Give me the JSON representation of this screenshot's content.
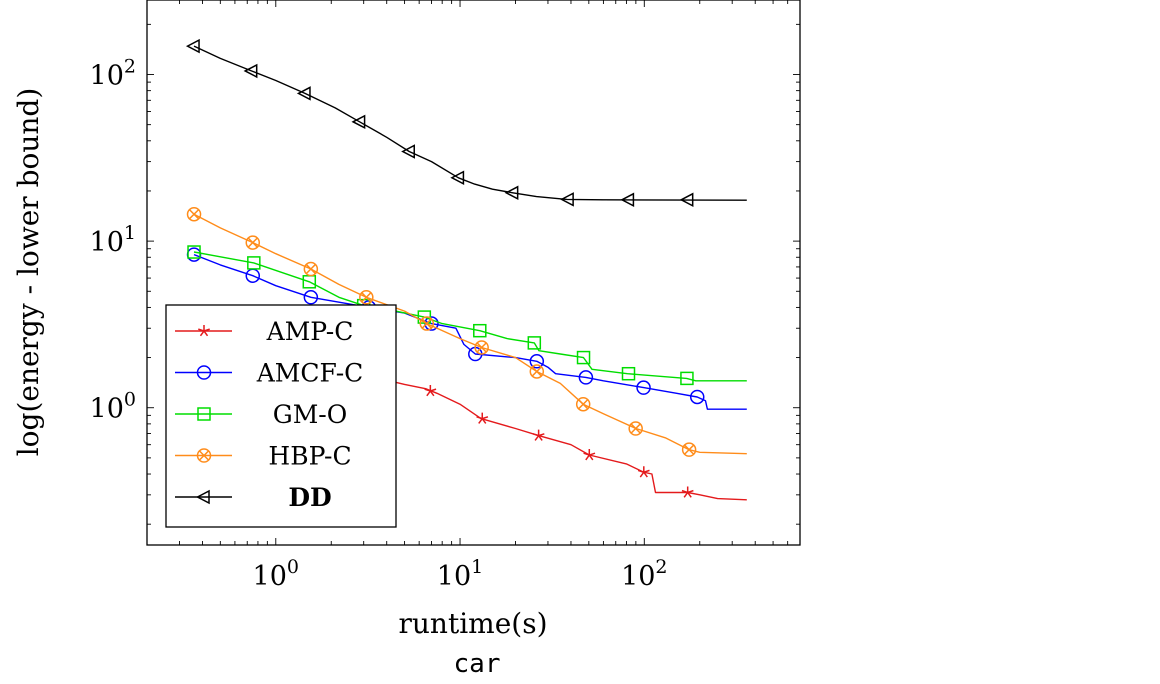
{
  "chart_data": {
    "type": "line",
    "xlabel": "runtime(s)",
    "ylabel": "log(energy - lower bound)",
    "caption": "car",
    "x_scale": "log",
    "y_scale": "log",
    "xlim": [
      0.2,
      700
    ],
    "ylim": [
      0.15,
      280
    ],
    "x_ticks": [
      {
        "value": 1,
        "base": "10",
        "exp": "0"
      },
      {
        "value": 10,
        "base": "10",
        "exp": "1"
      },
      {
        "value": 100,
        "base": "10",
        "exp": "2"
      }
    ],
    "y_ticks": [
      {
        "value": 1,
        "base": "10",
        "exp": "0"
      },
      {
        "value": 10,
        "base": "10",
        "exp": "1"
      },
      {
        "value": 100,
        "base": "10",
        "exp": "2"
      }
    ],
    "grid": false,
    "legend_position": "bottom-left",
    "series": [
      {
        "name": "AMP-C",
        "color": "#e41a1c",
        "marker": "star",
        "bold": false,
        "points": [
          [
            0.36,
            2.6
          ],
          [
            0.6,
            2.2
          ],
          [
            1,
            1.9
          ],
          [
            2,
            1.65
          ],
          [
            3.2,
            1.55
          ],
          [
            5,
            1.38
          ],
          [
            6.5,
            1.3
          ],
          [
            7.5,
            1.22
          ],
          [
            10,
            1.05
          ],
          [
            13,
            0.86
          ],
          [
            20,
            0.75
          ],
          [
            26.7,
            0.68
          ],
          [
            40,
            0.6
          ],
          [
            50.3,
            0.52
          ],
          [
            80,
            0.46
          ],
          [
            99.4,
            0.41
          ],
          [
            110,
            0.4
          ],
          [
            115,
            0.31
          ],
          [
            172,
            0.31
          ],
          [
            200,
            0.3
          ],
          [
            250,
            0.285
          ],
          [
            360,
            0.28
          ]
        ],
        "markers": [
          [
            0.36,
            2.6
          ],
          [
            0.75,
            2.1
          ],
          [
            1.55,
            1.75
          ],
          [
            3.2,
            1.55
          ],
          [
            6.9,
            1.26
          ],
          [
            13.2,
            0.86
          ],
          [
            26.7,
            0.68
          ],
          [
            50.3,
            0.52
          ],
          [
            99.4,
            0.41
          ],
          [
            172,
            0.31
          ]
        ]
      },
      {
        "name": "AMCF-C",
        "color": "#0000ff",
        "marker": "circle",
        "bold": false,
        "points": [
          [
            0.36,
            8.3
          ],
          [
            0.5,
            7.2
          ],
          [
            0.75,
            6.2
          ],
          [
            1,
            5.4
          ],
          [
            1.55,
            4.6
          ],
          [
            2.5,
            4.2
          ],
          [
            3.2,
            4.0
          ],
          [
            5,
            3.7
          ],
          [
            7,
            3.2
          ],
          [
            9.5,
            3.0
          ],
          [
            10.5,
            2.4
          ],
          [
            12.1,
            2.1
          ],
          [
            20,
            2.0
          ],
          [
            26.1,
            1.9
          ],
          [
            30,
            1.75
          ],
          [
            33,
            1.6
          ],
          [
            48.2,
            1.52
          ],
          [
            60,
            1.45
          ],
          [
            99.1,
            1.32
          ],
          [
            150,
            1.22
          ],
          [
            193.8,
            1.16
          ],
          [
            215,
            1.1
          ],
          [
            220,
            0.98
          ],
          [
            360,
            0.98
          ]
        ],
        "markers": [
          [
            0.36,
            8.3
          ],
          [
            0.75,
            6.2
          ],
          [
            1.55,
            4.6
          ],
          [
            3.2,
            4.0
          ],
          [
            7.0,
            3.2
          ],
          [
            12.1,
            2.1
          ],
          [
            26.1,
            1.9
          ],
          [
            48.2,
            1.52
          ],
          [
            99.1,
            1.32
          ],
          [
            193.8,
            1.16
          ]
        ]
      },
      {
        "name": "GM-O",
        "color": "#00dd00",
        "marker": "square",
        "bold": false,
        "points": [
          [
            0.36,
            8.6
          ],
          [
            0.76,
            7.4
          ],
          [
            1.52,
            5.7
          ],
          [
            2.2,
            4.6
          ],
          [
            3.0,
            4.1
          ],
          [
            4,
            3.9
          ],
          [
            6.4,
            3.5
          ],
          [
            8,
            3.2
          ],
          [
            12.8,
            2.9
          ],
          [
            18,
            2.6
          ],
          [
            25.3,
            2.45
          ],
          [
            26.8,
            2.2
          ],
          [
            35,
            2.1
          ],
          [
            46.8,
            2.0
          ],
          [
            52,
            1.7
          ],
          [
            81,
            1.6
          ],
          [
            170,
            1.5
          ],
          [
            190,
            1.45
          ],
          [
            360,
            1.45
          ]
        ],
        "markers": [
          [
            0.36,
            8.6
          ],
          [
            0.76,
            7.4
          ],
          [
            1.52,
            5.7
          ],
          [
            3.0,
            4.1
          ],
          [
            6.4,
            3.5
          ],
          [
            12.8,
            2.9
          ],
          [
            25.3,
            2.45
          ],
          [
            46.8,
            2.0
          ],
          [
            82.1,
            1.6
          ],
          [
            170.4,
            1.5
          ]
        ]
      },
      {
        "name": "HBP-C",
        "color": "#ff8c1a",
        "marker": "otimes",
        "bold": false,
        "points": [
          [
            0.36,
            14.5
          ],
          [
            0.5,
            12
          ],
          [
            0.75,
            9.8
          ],
          [
            1,
            8.4
          ],
          [
            1.55,
            6.8
          ],
          [
            2.2,
            5.5
          ],
          [
            3.1,
            4.6
          ],
          [
            5,
            3.8
          ],
          [
            6.6,
            3.2
          ],
          [
            10,
            2.6
          ],
          [
            13.1,
            2.3
          ],
          [
            20,
            2.0
          ],
          [
            26.1,
            1.65
          ],
          [
            35,
            1.4
          ],
          [
            46.6,
            1.05
          ],
          [
            60,
            0.92
          ],
          [
            90,
            0.75
          ],
          [
            130,
            0.66
          ],
          [
            175.1,
            0.56
          ],
          [
            200,
            0.54
          ],
          [
            360,
            0.53
          ]
        ],
        "markers": [
          [
            0.36,
            14.5
          ],
          [
            0.75,
            9.8
          ],
          [
            1.55,
            6.8
          ],
          [
            3.1,
            4.6
          ],
          [
            6.6,
            3.2
          ],
          [
            13.1,
            2.3
          ],
          [
            26.1,
            1.65
          ],
          [
            46.6,
            1.05
          ],
          [
            89.8,
            0.75
          ],
          [
            175.1,
            0.56
          ]
        ]
      },
      {
        "name": "DD",
        "color": "#000000",
        "marker": "triangle-left",
        "bold": true,
        "points": [
          [
            0.36,
            148
          ],
          [
            0.5,
            125
          ],
          [
            0.74,
            105
          ],
          [
            1,
            92
          ],
          [
            1.44,
            77
          ],
          [
            2.1,
            63
          ],
          [
            2.85,
            52
          ],
          [
            4,
            42
          ],
          [
            5.3,
            34.5
          ],
          [
            7,
            30
          ],
          [
            9.8,
            24
          ],
          [
            12,
            22
          ],
          [
            15,
            20.5
          ],
          [
            19.3,
            19.5
          ],
          [
            26,
            18.5
          ],
          [
            38,
            17.8
          ],
          [
            60,
            17.7
          ],
          [
            360,
            17.6
          ]
        ],
        "markers": [
          [
            0.36,
            148
          ],
          [
            0.74,
            105
          ],
          [
            1.44,
            77
          ],
          [
            2.85,
            52
          ],
          [
            5.3,
            34.5
          ],
          [
            9.8,
            24
          ],
          [
            19.3,
            19.5
          ],
          [
            38.6,
            17.8
          ],
          [
            82,
            17.7
          ],
          [
            172,
            17.7
          ]
        ]
      }
    ]
  }
}
